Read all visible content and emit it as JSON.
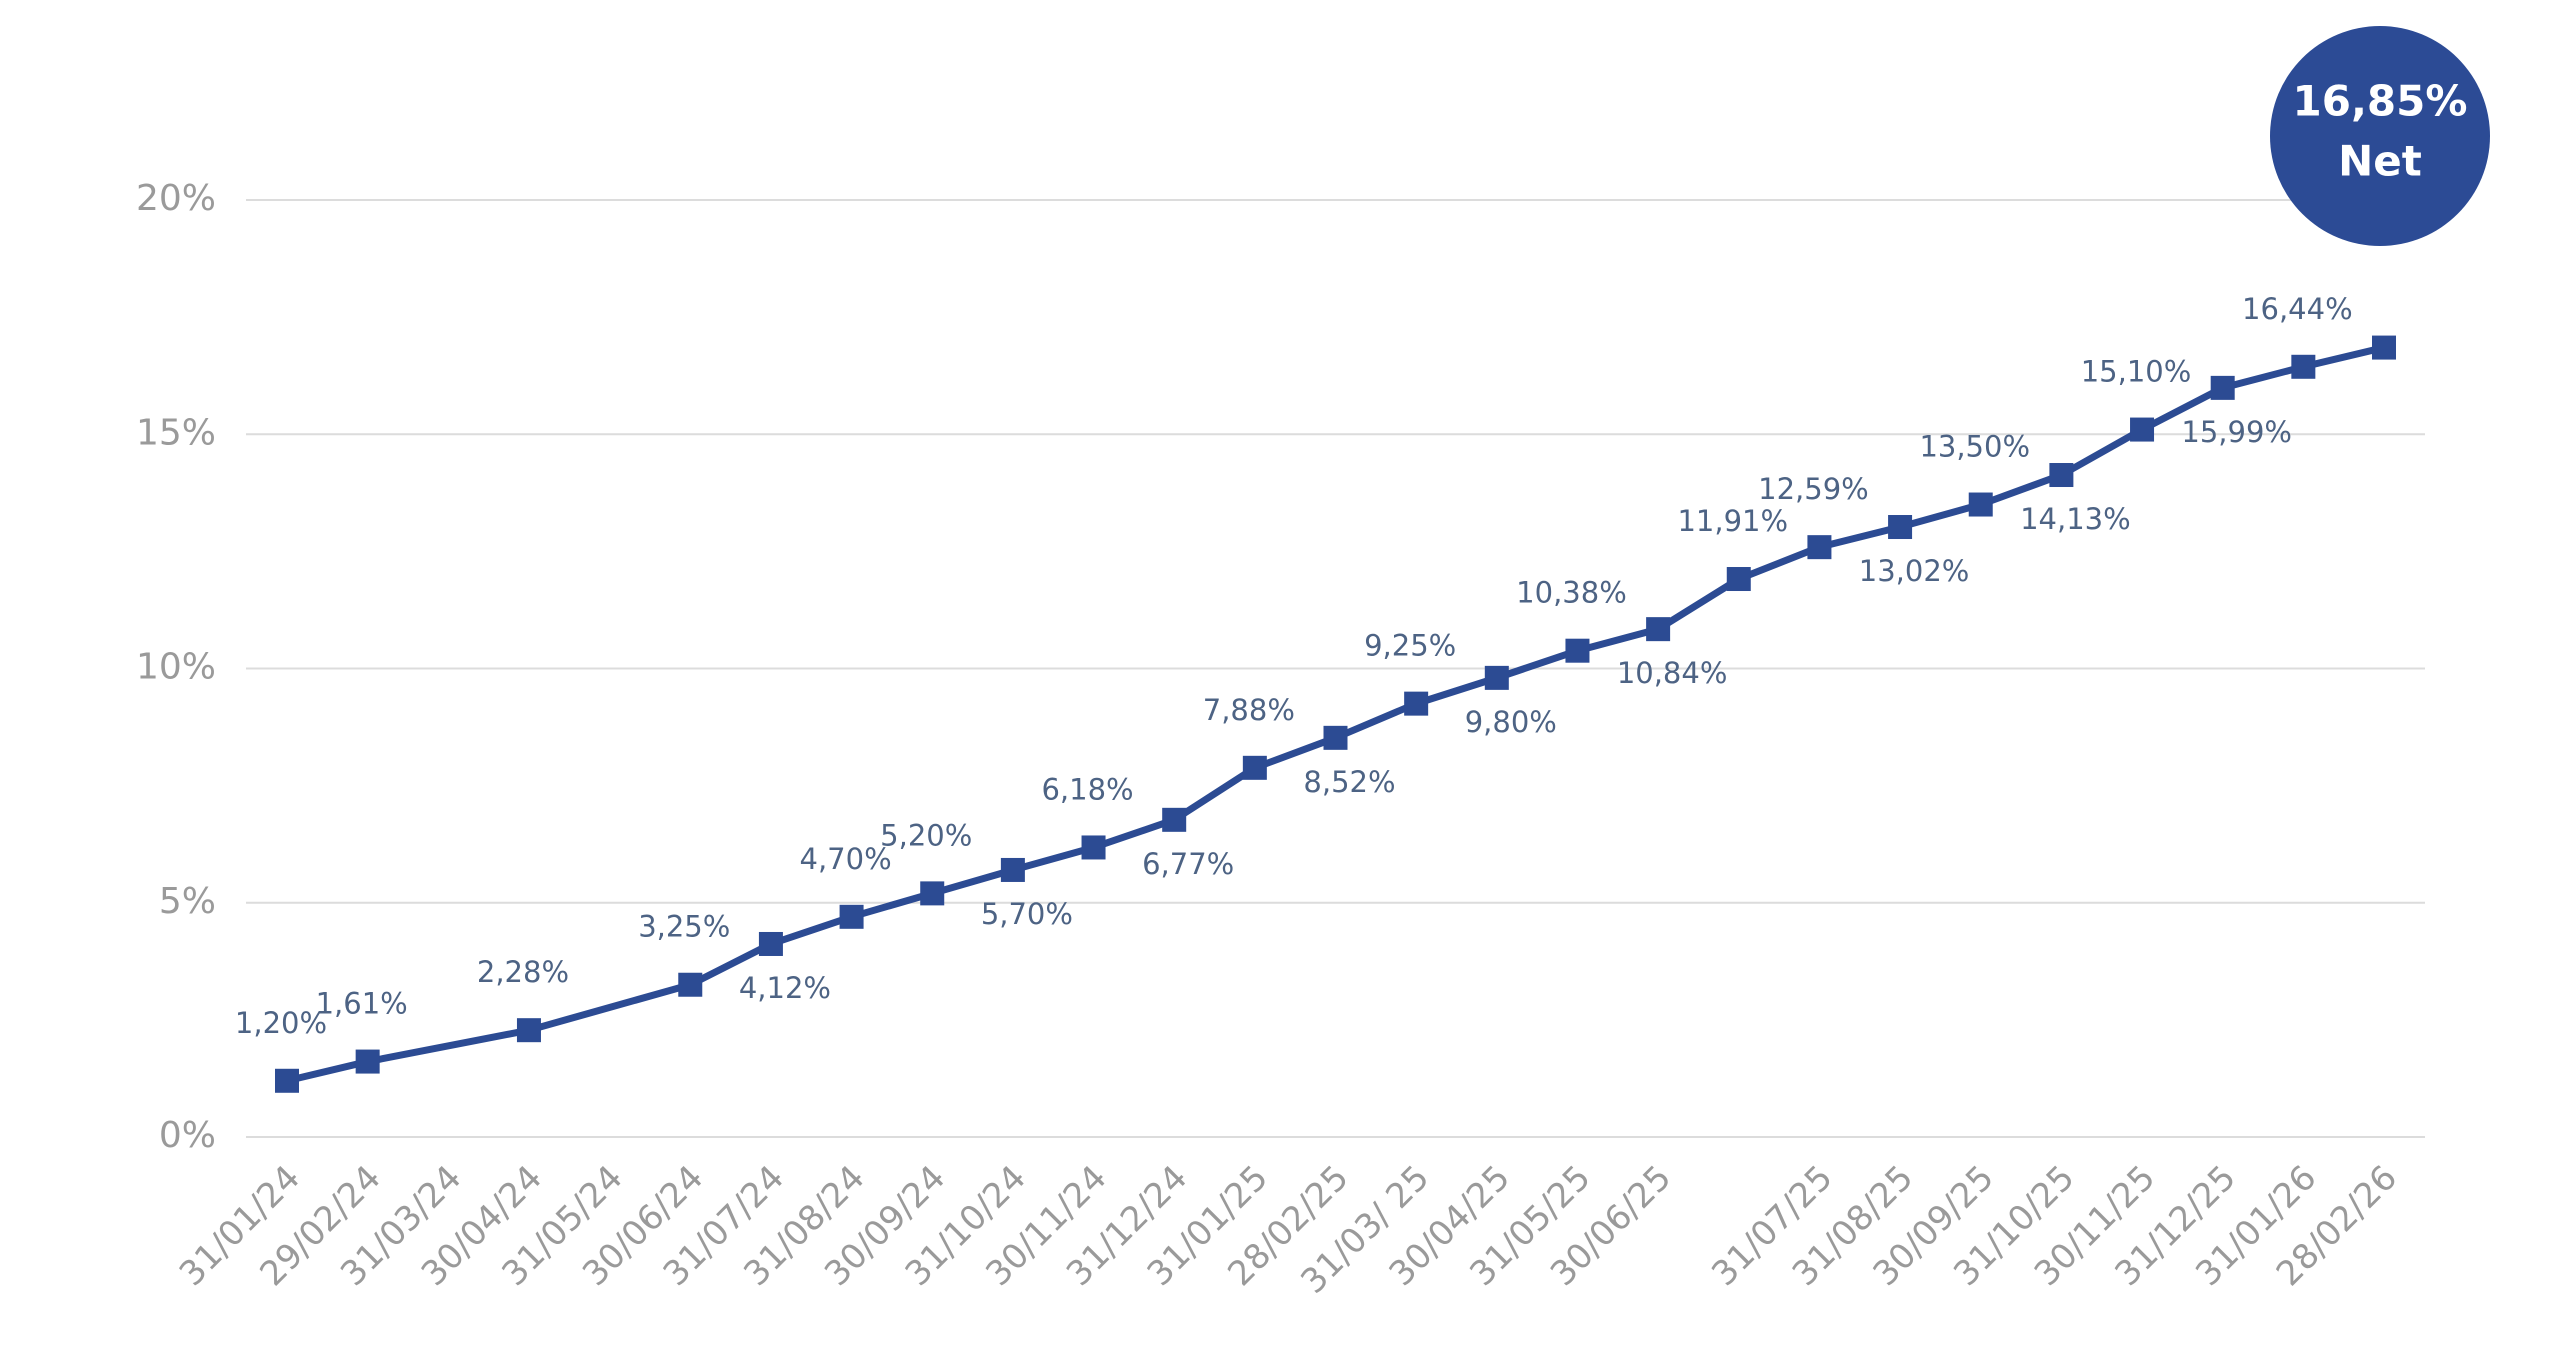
{
  "chart_data": {
    "type": "line",
    "categories": [
      "31/01/24",
      "29/02/24",
      "31/03/24",
      "30/04/24",
      "31/05/24",
      "30/06/24",
      "31/07/24",
      "31/08/24",
      "30/09/24",
      "31/10/24",
      "30/11/24",
      "31/12/24",
      "31/01/25",
      "28/02/25",
      "31/03/ 25",
      "30/04/25",
      "31/05/25",
      "30/06/25",
      null,
      "31/07/25",
      "31/08/25",
      "30/09/25",
      "31/10/25",
      "30/11/25",
      "31/12/25",
      "31/01/26",
      "28/02/26"
    ],
    "series": [
      {
        "name": "Net",
        "color": "#2c4b93",
        "values": [
          1.2,
          1.61,
          null,
          2.28,
          null,
          3.25,
          4.12,
          4.7,
          5.2,
          5.7,
          6.18,
          6.77,
          7.88,
          8.52,
          9.25,
          9.8,
          10.38,
          10.84,
          11.91,
          12.59,
          13.02,
          13.5,
          14.13,
          15.1,
          15.99,
          16.44,
          16.85
        ],
        "value_labels": [
          "1,20%",
          "1,61%",
          null,
          "2,28%",
          null,
          "3,25%",
          "4,12%",
          "4,70%",
          "5,20%",
          "5,70%",
          "6,18%",
          "6,77%",
          "7,88%",
          "8,52%",
          "9,25%",
          "9,80%",
          "10,38%",
          "10,84%",
          "11,91%",
          "12,59%",
          "13,02%",
          "13,50%",
          "14,13%",
          "15,10%",
          "15,99%",
          "16,44%",
          "16,85%"
        ]
      }
    ],
    "annotation": "Net",
    "connect_gaps": true,
    "ylim": [
      0,
      20
    ],
    "yticks": [
      {
        "value": 0,
        "label": "0%"
      },
      {
        "value": 5,
        "label": "5%"
      },
      {
        "value": 10,
        "label": "10%"
      },
      {
        "value": 15,
        "label": "15%"
      },
      {
        "value": 20,
        "label": "20%"
      }
    ],
    "grid": true
  }
}
